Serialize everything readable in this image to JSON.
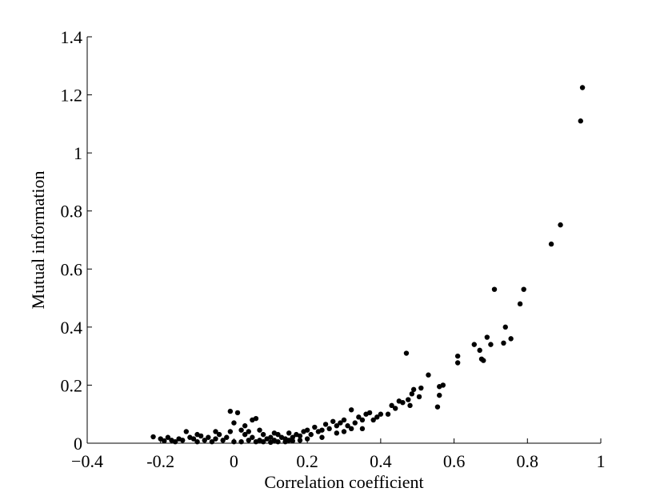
{
  "chart_data": {
    "type": "scatter",
    "xlabel": "Correlation coefficient",
    "ylabel": "Mutual information",
    "color": "#000000",
    "xlim": [
      -0.4,
      1
    ],
    "ylim": [
      0,
      1.4
    ],
    "xticks": [
      {
        "value": -0.4,
        "label": "−0.4"
      },
      -0.2,
      0,
      0.2,
      0.4,
      0.6,
      0.8,
      1
    ],
    "yticks": [
      0,
      0.2,
      0.4,
      0.6,
      0.8,
      1,
      1.2,
      1.4
    ],
    "x": [
      0.95,
      0.945,
      0.89,
      0.865,
      0.79,
      0.78,
      0.71,
      0.755,
      0.74,
      0.735,
      0.7,
      0.69,
      0.675,
      0.68,
      0.67,
      0.655,
      0.61,
      0.61,
      0.57,
      0.56,
      0.56,
      0.555,
      0.53,
      0.51,
      0.505,
      0.49,
      0.485,
      0.47,
      0.48,
      0.475,
      0.46,
      0.45,
      0.44,
      0.43,
      0.42,
      0.4,
      0.39,
      0.38,
      0.37,
      0.36,
      0.35,
      0.34,
      0.33,
      0.32,
      0.32,
      0.31,
      0.3,
      0.29,
      0.28,
      0.27,
      0.26,
      0.25,
      0.24,
      0.23,
      0.22,
      0.21,
      0.2,
      0.19,
      0.18,
      0.17,
      0.16,
      0.15,
      0.14,
      0.13,
      0.12,
      0.11,
      0.1,
      0.09,
      0.08,
      0.07,
      0.06,
      0.05,
      0.05,
      0.04,
      0.03,
      0.02,
      0.01,
      -0.01,
      0,
      -0.02,
      -0.03,
      -0.04,
      -0.05,
      -0.06,
      -0.07,
      -0.08,
      -0.09,
      -0.1,
      -0.11,
      -0.12,
      -0.13,
      -0.14,
      -0.15,
      -0.16,
      -0.17,
      -0.18,
      -0.19,
      -0.2,
      -0.22,
      0,
      0.02,
      0.04,
      0.06,
      0.08,
      0.1,
      0.12,
      0.14,
      0.16,
      0.18,
      0.2,
      -0.01,
      0.03,
      0.07,
      0.11,
      0.15,
      0.24,
      0.28,
      0.35,
      0.3,
      -0.1,
      -0.05
    ],
    "y": [
      1.225,
      1.11,
      0.752,
      0.686,
      0.53,
      0.48,
      0.53,
      0.36,
      0.4,
      0.345,
      0.34,
      0.365,
      0.29,
      0.285,
      0.32,
      0.34,
      0.3,
      0.277,
      0.2,
      0.195,
      0.165,
      0.125,
      0.235,
      0.19,
      0.16,
      0.185,
      0.17,
      0.31,
      0.13,
      0.15,
      0.14,
      0.145,
      0.12,
      0.13,
      0.1,
      0.1,
      0.09,
      0.08,
      0.105,
      0.1,
      0.08,
      0.09,
      0.07,
      0.115,
      0.05,
      0.06,
      0.08,
      0.07,
      0.06,
      0.075,
      0.05,
      0.065,
      0.045,
      0.04,
      0.055,
      0.03,
      0.045,
      0.04,
      0.025,
      0.03,
      0.02,
      0.035,
      0.015,
      0.02,
      0.03,
      0.01,
      0.02,
      0.015,
      0.03,
      0.01,
      0.085,
      0.08,
      0.02,
      0.01,
      0.03,
      0.045,
      0.105,
      0.11,
      0.07,
      0.02,
      0.01,
      0.03,
      0.015,
      0.005,
      0.02,
      0.01,
      0.025,
      0.005,
      0.015,
      0.02,
      0.04,
      0.01,
      0.015,
      0.005,
      0.01,
      0.02,
      0.008,
      0.015,
      0.022,
      0.005,
      0.005,
      0.04,
      0.005,
      0.005,
      0.003,
      0.005,
      0.005,
      0.008,
      0.01,
      0.015,
      0.04,
      0.06,
      0.045,
      0.035,
      0.01,
      0.02,
      0.035,
      0.05,
      0.04,
      0.03,
      0.04
    ]
  }
}
